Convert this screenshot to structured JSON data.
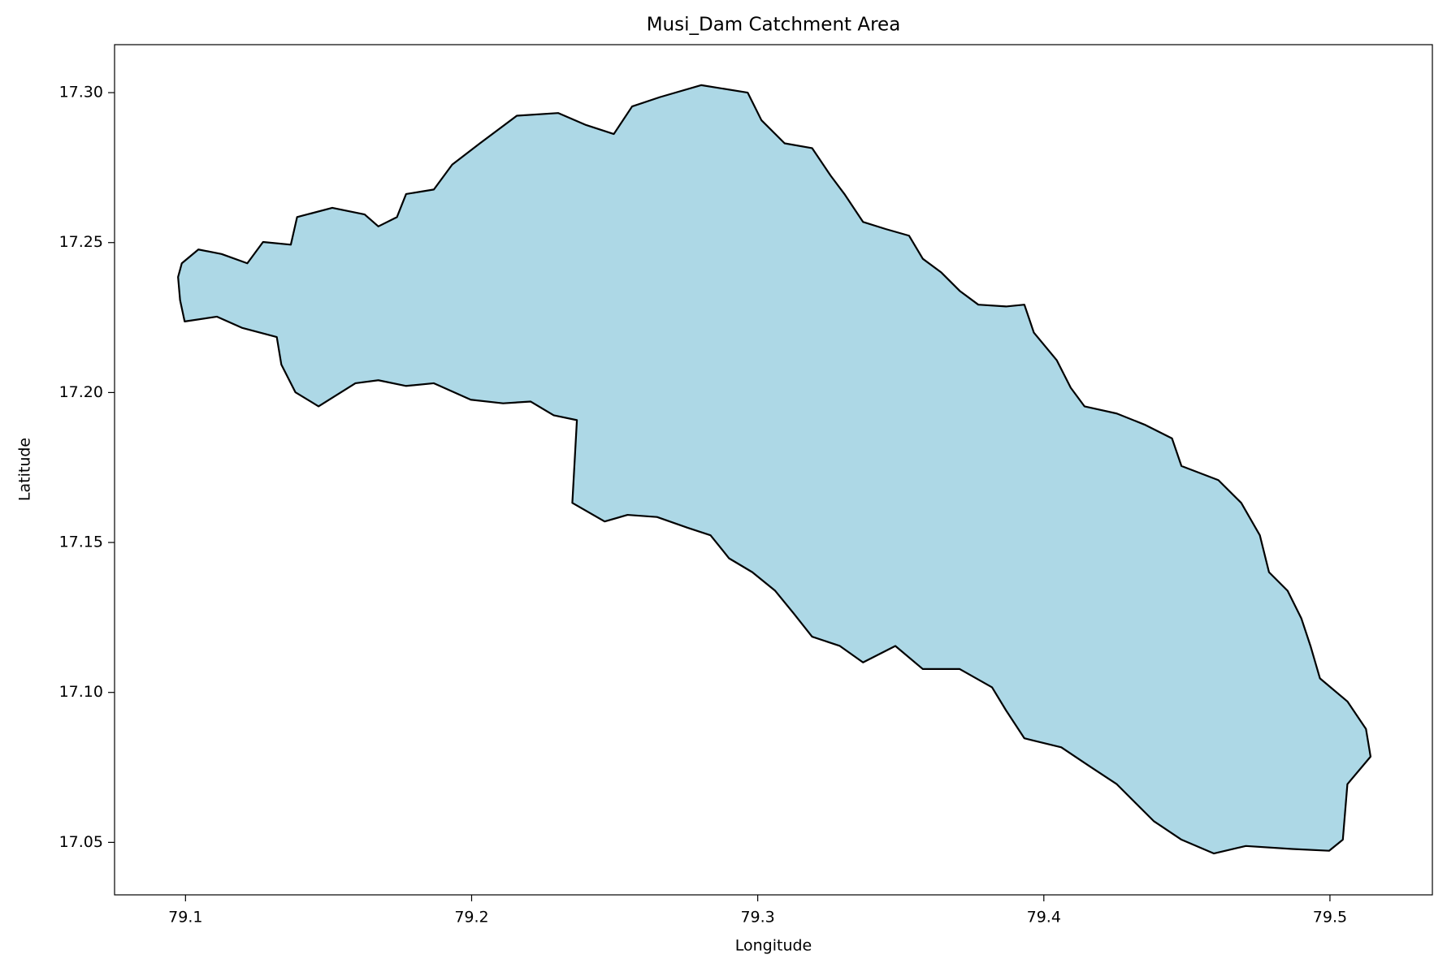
{
  "chart_data": {
    "type": "polygon",
    "title": "Musi_Dam Catchment Area",
    "xlabel": "Longitude",
    "ylabel": "Latitude",
    "x": [
      79.0974,
      79.0987,
      79.1045,
      79.1126,
      79.1216,
      79.1271,
      79.1368,
      79.139,
      79.1513,
      79.1626,
      79.1674,
      79.1739,
      79.1771,
      79.1868,
      79.1932,
      79.2029,
      79.2158,
      79.2303,
      79.24,
      79.2497,
      79.2561,
      79.2658,
      79.2803,
      79.2965,
      79.3013,
      79.3094,
      79.319,
      79.3255,
      79.3303,
      79.3368,
      79.3448,
      79.3529,
      79.3577,
      79.3642,
      79.3706,
      79.3771,
      79.3868,
      79.3932,
      79.3965,
      79.4045,
      79.4094,
      79.4142,
      79.4255,
      79.4352,
      79.4448,
      79.4481,
      79.461,
      79.469,
      79.4755,
      79.4787,
      79.4852,
      79.49,
      79.4932,
      79.4965,
      79.5061,
      79.5126,
      79.5142,
      79.5061,
      79.5045,
      79.4997,
      79.4868,
      79.4706,
      79.4594,
      79.4481,
      79.4384,
      79.4255,
      79.4158,
      79.4061,
      79.3932,
      79.3868,
      79.3819,
      79.3706,
      79.3577,
      79.3481,
      79.3368,
      79.3287,
      79.319,
      79.3126,
      79.3061,
      79.2981,
      79.29,
      79.2835,
      79.2755,
      79.2648,
      79.2545,
      79.2465,
      79.2352,
      79.2368,
      79.2287,
      79.2206,
      79.211,
      79.1997,
      79.1868,
      79.1771,
      79.1674,
      79.1594,
      79.1465,
      79.1384,
      79.1335,
      79.1319,
      79.1197,
      79.111,
      79.0997,
      79.0981
    ],
    "y": [
      17.2385,
      17.2431,
      17.2477,
      17.2462,
      17.2431,
      17.2502,
      17.2493,
      17.2585,
      17.2616,
      17.2594,
      17.2554,
      17.2585,
      17.2662,
      17.2677,
      17.276,
      17.2831,
      17.2923,
      17.2932,
      17.2892,
      17.2862,
      17.2954,
      17.2985,
      17.3025,
      17.3,
      17.2908,
      17.2831,
      17.2815,
      17.2723,
      17.2662,
      17.2569,
      17.2545,
      17.2523,
      17.2446,
      17.24,
      17.2339,
      17.2293,
      17.2287,
      17.2293,
      17.22,
      17.2108,
      17.2016,
      17.1954,
      17.193,
      17.1893,
      17.1847,
      17.1755,
      17.1708,
      17.1632,
      17.1524,
      17.1401,
      17.1339,
      17.1247,
      17.1155,
      17.1047,
      17.097,
      17.0878,
      17.0786,
      17.0694,
      17.0509,
      17.0472,
      17.0478,
      17.0488,
      17.0463,
      17.0509,
      17.0571,
      17.0694,
      17.0755,
      17.0817,
      17.0847,
      17.094,
      17.1017,
      17.1078,
      17.1078,
      17.1155,
      17.11,
      17.1155,
      17.1186,
      17.1263,
      17.1339,
      17.1401,
      17.1447,
      17.1524,
      17.1549,
      17.1585,
      17.1592,
      17.157,
      17.1632,
      17.1908,
      17.1924,
      17.197,
      17.1964,
      17.1976,
      17.2031,
      17.2022,
      17.2041,
      17.2031,
      17.1954,
      17.2001,
      17.2093,
      17.2185,
      17.2216,
      17.2253,
      17.2237,
      17.2308
    ],
    "color": "#add8e6",
    "edgecolor": "#000000",
    "xlim": [
      79.0752,
      79.5358
    ],
    "ylim": [
      17.0325,
      17.316
    ],
    "xticks": [
      79.1,
      79.2,
      79.3,
      79.4,
      79.5
    ],
    "yticks": [
      {
        "value": 17.05,
        "label": "17.05"
      },
      {
        "value": 17.1,
        "label": "17.10"
      },
      {
        "value": 17.15,
        "label": "17.15"
      },
      {
        "value": 17.2,
        "label": "17.20"
      },
      {
        "value": 17.25,
        "label": "17.25"
      },
      {
        "value": 17.3,
        "label": "17.30"
      }
    ]
  }
}
